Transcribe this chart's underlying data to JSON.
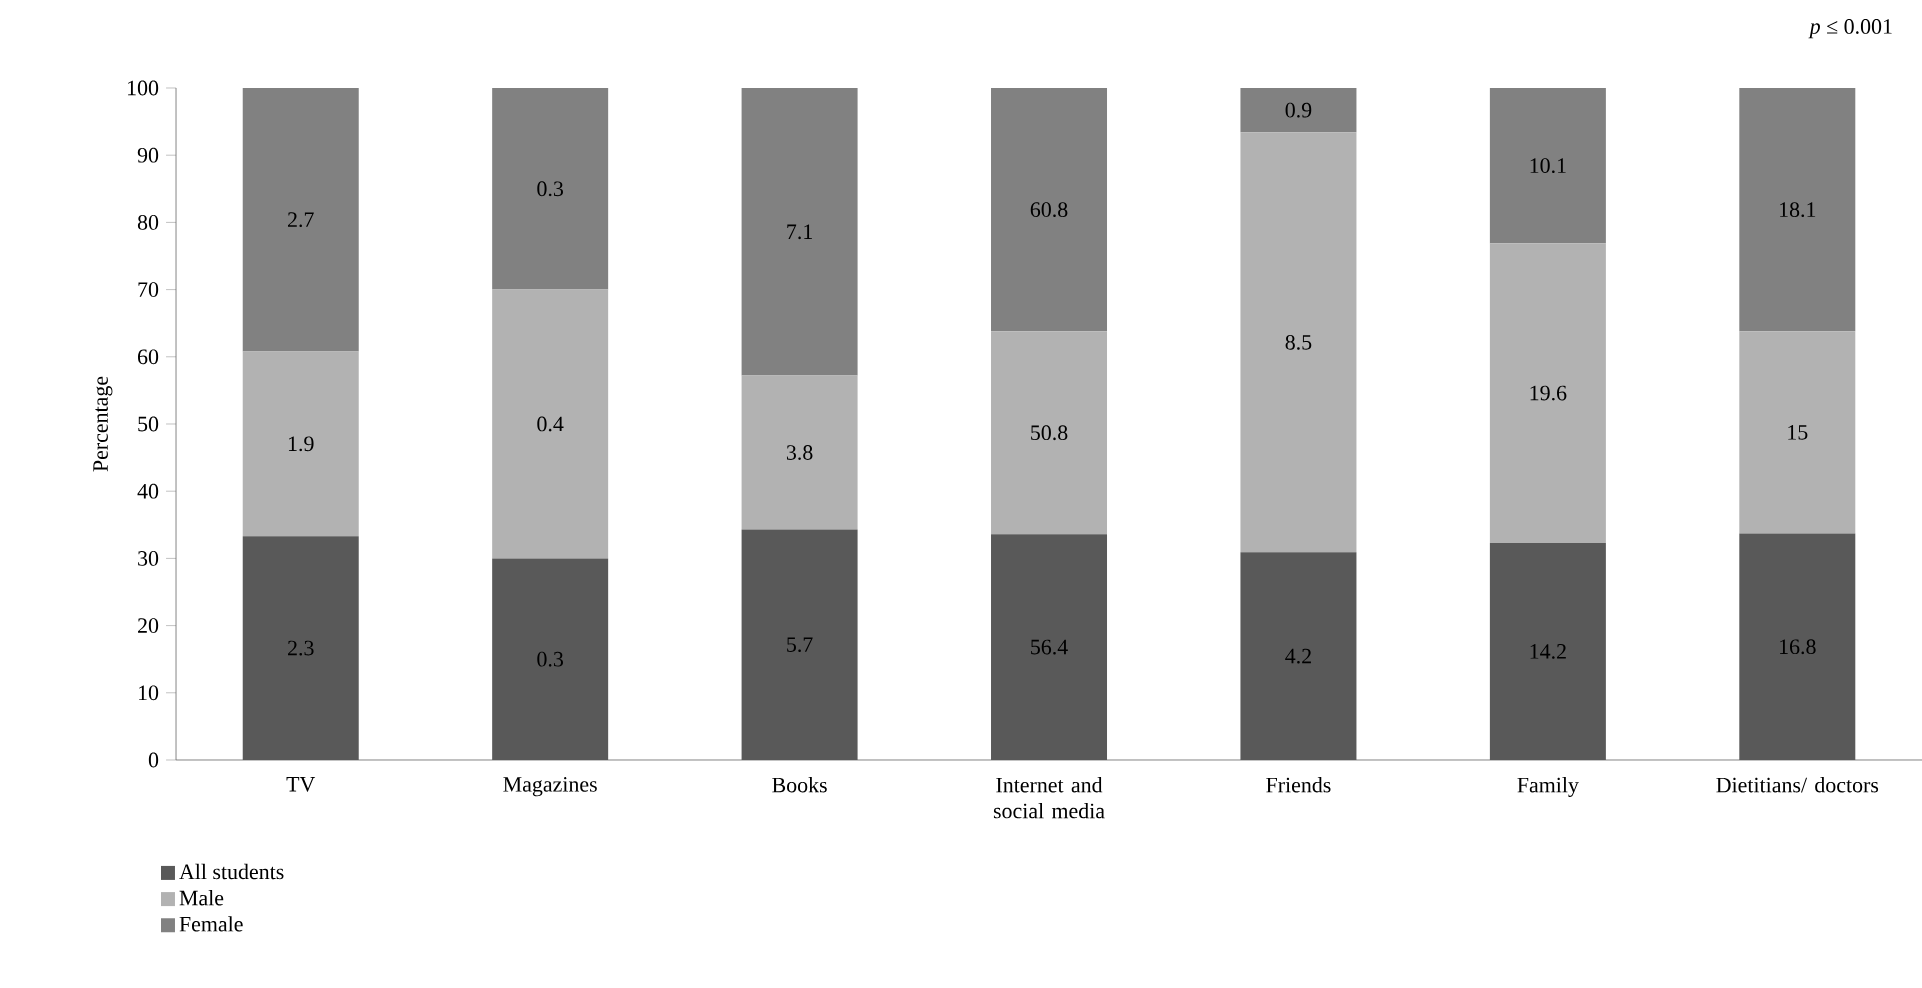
{
  "chart_data": {
    "type": "bar",
    "stacked": true,
    "ylabel": "Percentage",
    "categories": [
      "TV",
      "Magazines",
      "Books",
      "Internet and social media",
      "Friends",
      "Family",
      "Dietitians/ doctors"
    ],
    "series": [
      {
        "name": "All students",
        "color": "#595959",
        "values": [
          33.3,
          30,
          34.3,
          33.6,
          30.9,
          32.3,
          33.7
        ]
      },
      {
        "name": "Male",
        "color": "#b2b2b2",
        "values": [
          27.5,
          40,
          22.9,
          30.2,
          62.5,
          44.6,
          30.1
        ]
      },
      {
        "name": "Female",
        "color": "#818181",
        "values": [
          39.2,
          30,
          42.8,
          36.2,
          6.6,
          23.1,
          36.2
        ]
      }
    ],
    "ylim": [
      0,
      100
    ],
    "yticks": [
      0,
      10,
      20,
      30,
      40,
      50,
      60,
      70,
      80,
      90,
      100
    ],
    "grid": false,
    "legend": "bottom left",
    "annotations": [
      "*p* ≤ 0.001",
      "2.3",
      "1.9",
      "2.7",
      "0.3",
      "0.4",
      "0.3",
      "5.7",
      "3.8",
      "7.1",
      "56.4",
      "50.8",
      "60.8",
      "4.2",
      "8.5",
      "0.9",
      "14.2",
      "19.6",
      "10.1",
      "16.8",
      "15",
      "18.1"
    ]
  }
}
